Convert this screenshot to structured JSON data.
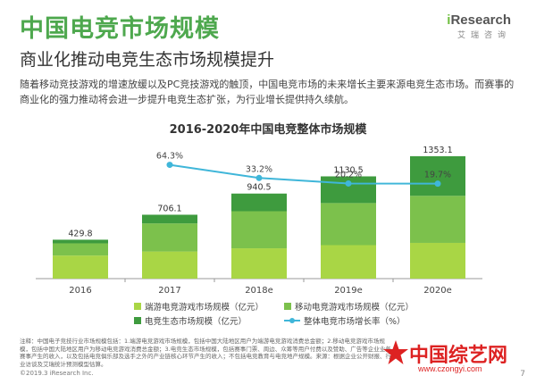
{
  "page": {
    "heading": "中国电竞市场规模",
    "subheading": "商业化推动电竞生态市场规模提升",
    "logo_name_prefix": "i",
    "logo_name": "Research",
    "logo_sub": "艾瑞咨询",
    "body_text": "随着移动竞技游戏的增速放缓以及PC竞技游戏的触顶，中国电竞市场的未来增长主要来源电竞生态市场。而赛事的商业化的强力推动将会进一步提升电竞生态扩张，为行业增长提供持久续航。",
    "notes": "注释：中国电子竞技行业市场规模包括：1.端游电竞游戏市场规模，包括中国大陆地区用户为端游电竞游戏消费总金额；2.移动电竞游戏市场规模，包括中国大陆地区用户为移动电竞游戏消费总金额；3.电竞生态市场规模，包括赛事门票、周边、众筹等用户付费以及赞助、广告等企业业务赛事产生的收入，以及包括电竞俱乐部及选手之外的产业链核心环节产生的收入；不包括电竞教育与电竞地产规模。来源：根据企业公开财报、行业访谈及艾瑞统计预测模型估算。",
    "copyright": "©2019.3 iResearch Inc.",
    "page_number": "7",
    "watermark_text": "中国综艺网",
    "watermark_url": "www.czongyi.com"
  },
  "chart_data": {
    "type": "bar",
    "title": "2016-2020年中国电竞整体市场规模",
    "categories": [
      "2016",
      "2017",
      "2018e",
      "2019e",
      "2020e"
    ],
    "totals": [
      429.8,
      706.1,
      940.5,
      1130.5,
      1353.1
    ],
    "totals_labels": [
      "429.8",
      "706.1",
      "940.5",
      "1130.5",
      "1353.1"
    ],
    "series": [
      {
        "name": "端游电竞游戏市场规模（亿元）",
        "color": "#a9d645",
        "values": [
          255,
          300,
          335,
          370,
          395
        ]
      },
      {
        "name": "移动电竞游戏市场规模（亿元）",
        "color": "#7cc14c",
        "values": [
          135,
          310,
          410,
          465,
          520
        ]
      },
      {
        "name": "电竞生态市场规模（亿元）",
        "color": "#3e9b3e",
        "values": [
          40,
          96,
          195,
          295,
          438
        ]
      }
    ],
    "growth": {
      "name": "整体电竞市场增长率（%）",
      "color": "#3fb6d9",
      "values": [
        64.3,
        33.2,
        20.2,
        19.7
      ],
      "labels": [
        "64.3%",
        "33.2%",
        "20.2%",
        "19.7%"
      ],
      "categories": [
        "2017",
        "2018e",
        "2019e",
        "2020e"
      ]
    },
    "ylim": [
      0,
      1500
    ],
    "line_ylim": [
      0,
      100
    ],
    "legend_placement": "bottom"
  }
}
